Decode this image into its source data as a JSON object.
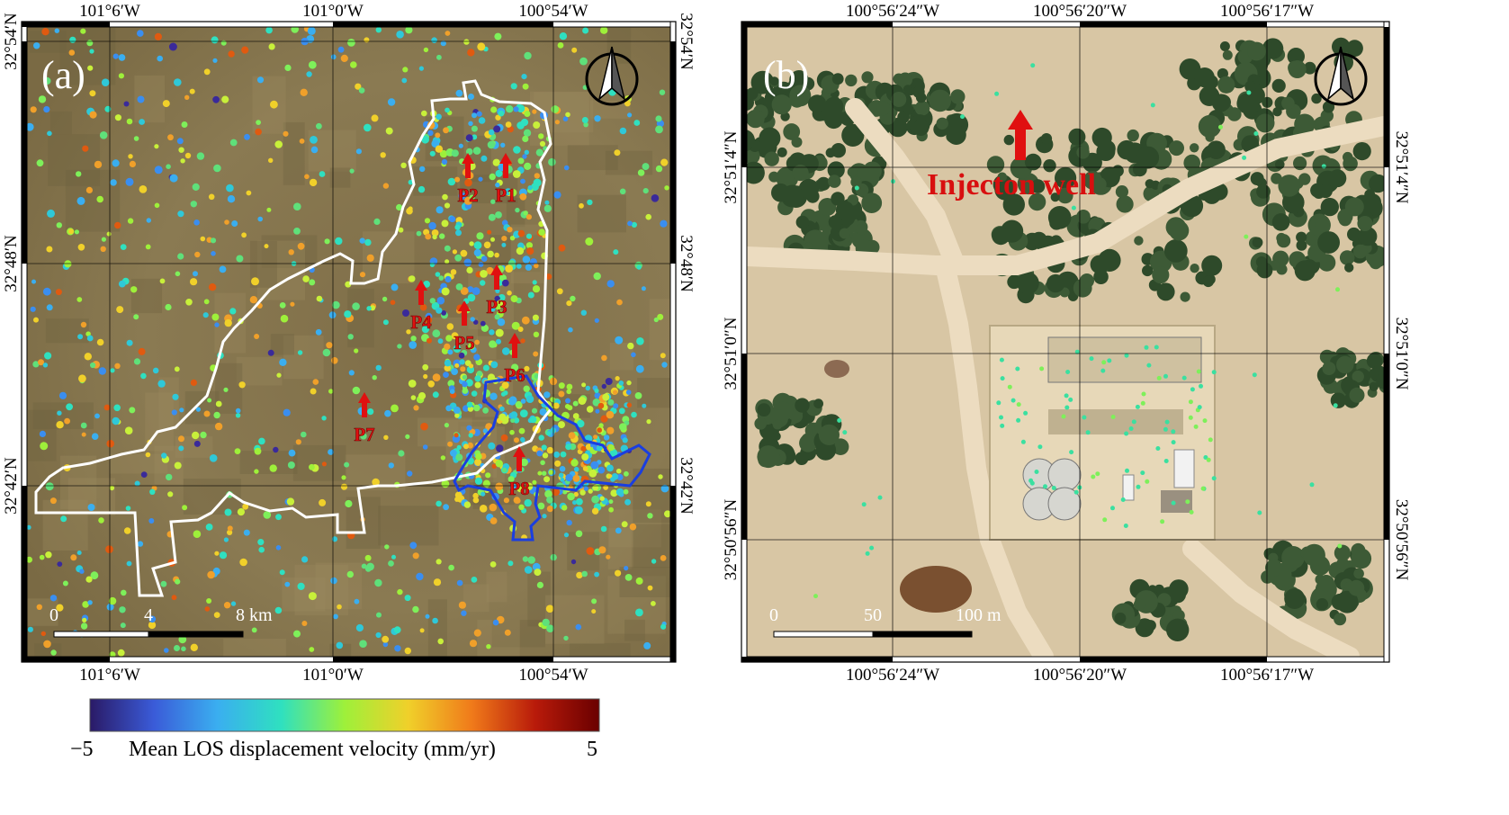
{
  "panel_a": {
    "label": "(a)",
    "lon_ticks": [
      "101°6′W",
      "101°0′W",
      "100°54′W"
    ],
    "lat_ticks": [
      "32°54′N",
      "32°48′N",
      "32°42′N"
    ],
    "points": [
      {
        "id": "P1",
        "label": "P1"
      },
      {
        "id": "P2",
        "label": "P2"
      },
      {
        "id": "P3",
        "label": "P3"
      },
      {
        "id": "P4",
        "label": "P4"
      },
      {
        "id": "P5",
        "label": "P5"
      },
      {
        "id": "P6",
        "label": "P6"
      },
      {
        "id": "P7",
        "label": "P7"
      },
      {
        "id": "P8",
        "label": "P8"
      }
    ],
    "scalebar": {
      "labels": [
        "0",
        "4",
        "8 km"
      ]
    }
  },
  "panel_b": {
    "label": "(b)",
    "lon_ticks": [
      "100°56′24″W",
      "100°56′20″W",
      "100°56′17″W"
    ],
    "lat_ticks": [
      "32°51′4″N",
      "32°51′0″N",
      "32°50′56″N"
    ],
    "annotation": "Injecton well",
    "scalebar": {
      "labels": [
        "0",
        "50",
        "100 m"
      ]
    }
  },
  "colorbar": {
    "min_label": "−5",
    "max_label": "5",
    "title": "Mean LOS displacement velocity (mm/yr)",
    "stops": [
      "#2a1a66",
      "#3a5bd8",
      "#3aaef0",
      "#2fe0c0",
      "#9ef03a",
      "#f0d02a",
      "#f07a1a",
      "#b81a0a",
      "#6a0000"
    ]
  },
  "colors": {
    "frame": "#000000",
    "boundary_white": "#ffffff",
    "boundary_blue": "#1a3ee0",
    "marker_red": "#e01010",
    "terrain_a": "#8a7a52",
    "terrain_b": "#d6c4a2"
  }
}
